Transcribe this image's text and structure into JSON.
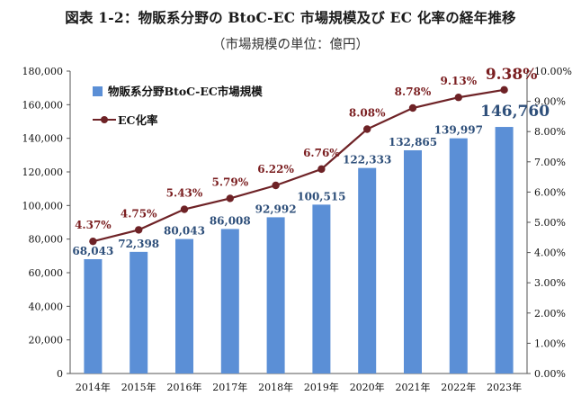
{
  "header": {
    "title": "図表 1-2：物販系分野の BtoC-EC 市場規模及び EC 化率の経年推移",
    "subtitle": "（市場規模の単位：億円）"
  },
  "chart_data": {
    "type": "bar",
    "categories": [
      "2014年",
      "2015年",
      "2016年",
      "2017年",
      "2018年",
      "2019年",
      "2020年",
      "2021年",
      "2022年",
      "2023年"
    ],
    "series": [
      {
        "name": "物販系分野BtoC-EC市場規模",
        "type": "bar",
        "axis": "left",
        "color": "#5b8fd6",
        "values": [
          68043,
          72398,
          80043,
          86008,
          92992,
          100515,
          122333,
          132865,
          139997,
          146760
        ],
        "labels": [
          "68,043",
          "72,398",
          "80,043",
          "86,008",
          "92,992",
          "100,515",
          "122,333",
          "132,865",
          "139,997",
          "146,760"
        ]
      },
      {
        "name": "EC化率",
        "type": "line",
        "axis": "right",
        "color": "#6e2226",
        "values": [
          4.37,
          4.75,
          5.43,
          5.79,
          6.22,
          6.76,
          8.08,
          8.78,
          9.13,
          9.38
        ],
        "labels": [
          "4.37%",
          "4.75%",
          "5.43%",
          "5.79%",
          "6.22%",
          "6.76%",
          "8.08%",
          "8.78%",
          "9.13%",
          "9.38%"
        ]
      }
    ],
    "y_left": {
      "range": [
        0,
        180000
      ],
      "ticks": [
        "0",
        "20,000",
        "40,000",
        "60,000",
        "80,000",
        "100,000",
        "120,000",
        "140,000",
        "160,000",
        "180,000"
      ]
    },
    "y_right": {
      "range": [
        0,
        10
      ],
      "ticks": [
        "0.00%",
        "1.00%",
        "2.00%",
        "3.00%",
        "4.00%",
        "5.00%",
        "6.00%",
        "7.00%",
        "8.00%",
        "9.00%",
        "10.00%"
      ]
    },
    "grid": false,
    "legend": "top-left"
  }
}
